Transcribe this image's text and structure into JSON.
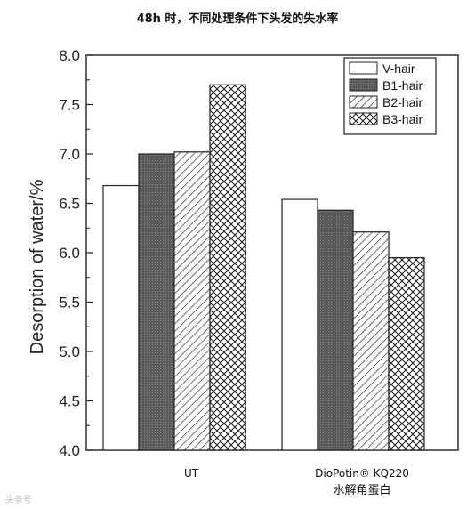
{
  "chart_data": {
    "type": "bar",
    "title": "48h 时，不同处理条件下头发的失水率",
    "ylabel": "Desorption of water/%",
    "xlabel": "",
    "ylim": [
      4.0,
      8.0
    ],
    "yticks": [
      "4.0",
      "4.5",
      "5.0",
      "5.5",
      "6.0",
      "6.5",
      "7.0",
      "7.5",
      "8.0"
    ],
    "categories": [
      {
        "line1": "UT",
        "line2": ""
      },
      {
        "line1": "DioPotin® KQ220",
        "line2": "水解角蛋白"
      }
    ],
    "series": [
      {
        "name": "V-hair",
        "values": [
          6.68,
          6.54
        ],
        "pattern": "none"
      },
      {
        "name": "B1-hair",
        "values": [
          7.0,
          6.43
        ],
        "pattern": "dark"
      },
      {
        "name": "B2-hair",
        "values": [
          7.02,
          6.21
        ],
        "pattern": "diagonal"
      },
      {
        "name": "B3-hair",
        "values": [
          7.7,
          5.95
        ],
        "pattern": "crosshatch"
      }
    ],
    "legend_position": "top-right",
    "grid": false
  },
  "watermark": "头条号"
}
